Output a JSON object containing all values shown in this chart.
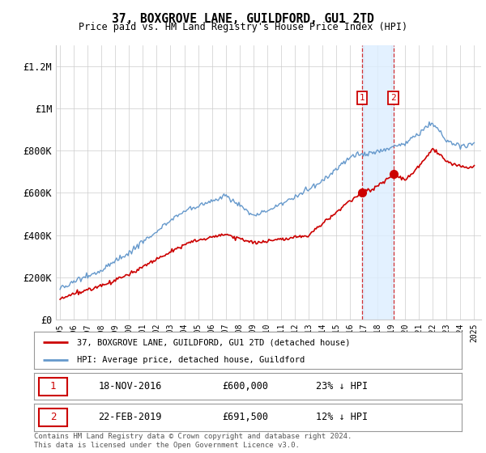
{
  "title": "37, BOXGROVE LANE, GUILDFORD, GU1 2TD",
  "subtitle": "Price paid vs. HM Land Registry's House Price Index (HPI)",
  "ylabel_ticks": [
    "£0",
    "£200K",
    "£400K",
    "£600K",
    "£800K",
    "£1M",
    "£1.2M"
  ],
  "ytick_values": [
    0,
    200000,
    400000,
    600000,
    800000,
    1000000,
    1200000
  ],
  "ylim": [
    0,
    1300000
  ],
  "xlim_start": 1994.7,
  "xlim_end": 2025.5,
  "sale1_date": 2016.88,
  "sale1_price": 600000,
  "sale2_date": 2019.14,
  "sale2_price": 691500,
  "red_color": "#cc0000",
  "blue_color": "#6699cc",
  "blue_shade_color": "#ddeeff",
  "vline_color": "#cc0000",
  "grid_color": "#cccccc",
  "bg_color": "#ffffff",
  "label_box_color": "#cc0000",
  "legend_line1": "37, BOXGROVE LANE, GUILDFORD, GU1 2TD (detached house)",
  "legend_line2": "HPI: Average price, detached house, Guildford",
  "table_row1_num": "1",
  "table_row1_date": "18-NOV-2016",
  "table_row1_price": "£600,000",
  "table_row1_hpi": "23% ↓ HPI",
  "table_row2_num": "2",
  "table_row2_date": "22-FEB-2019",
  "table_row2_price": "£691,500",
  "table_row2_hpi": "12% ↓ HPI",
  "footer": "Contains HM Land Registry data © Crown copyright and database right 2024.\nThis data is licensed under the Open Government Licence v3.0."
}
